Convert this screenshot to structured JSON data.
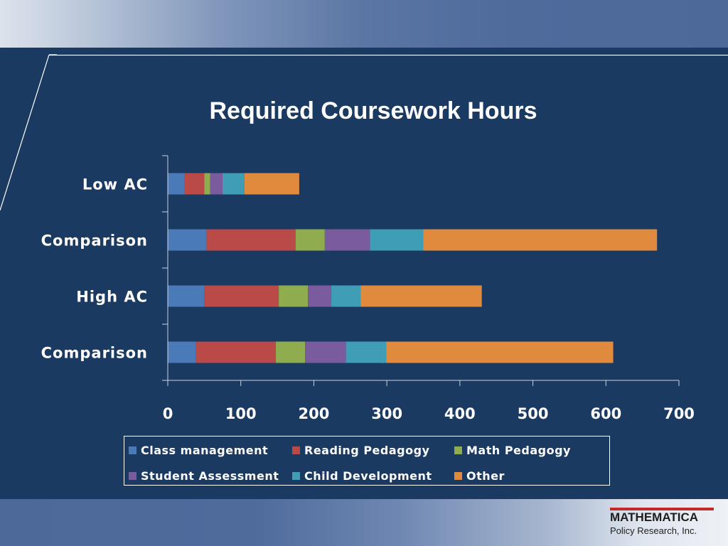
{
  "logo": {
    "name": "MATHEMATICA",
    "subtitle": "Policy Research, Inc."
  },
  "chart_data": {
    "type": "bar",
    "orientation": "horizontal",
    "stacked": true,
    "title": "Required Coursework  Hours",
    "xlabel": "",
    "ylabel": "",
    "xlim": [
      0,
      700
    ],
    "xticks": [
      0,
      100,
      200,
      300,
      400,
      500,
      600,
      700
    ],
    "grid": false,
    "legend_position": "bottom",
    "categories": [
      "Low AC",
      "Comparison",
      "High AC",
      "Comparison"
    ],
    "series": [
      {
        "name": "Class management",
        "color": "#4a7ab7",
        "values": [
          23,
          53,
          50,
          38
        ]
      },
      {
        "name": "Reading Pedagogy",
        "color": "#b94a48",
        "values": [
          27,
          122,
          102,
          110
        ]
      },
      {
        "name": "Math Pedagogy",
        "color": "#8fad4f",
        "values": [
          8,
          40,
          40,
          40
        ]
      },
      {
        "name": "Student Assessment",
        "color": "#7a5c9e",
        "values": [
          17,
          62,
          32,
          56
        ]
      },
      {
        "name": "Child Development",
        "color": "#3f9db5",
        "values": [
          30,
          73,
          40,
          55
        ]
      },
      {
        "name": "Other",
        "color": "#e08a3e",
        "values": [
          75,
          320,
          166,
          311
        ]
      }
    ]
  }
}
